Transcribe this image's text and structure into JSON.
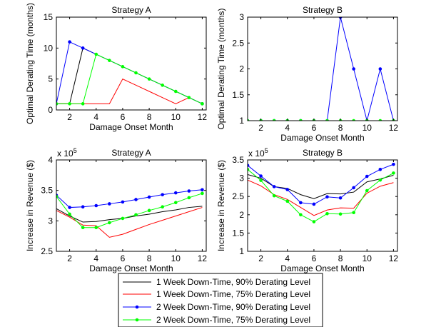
{
  "series_styles": [
    {
      "key": "w1_90",
      "color": "#000000",
      "marker": "none"
    },
    {
      "key": "w1_75",
      "color": "#ff0000",
      "marker": "none"
    },
    {
      "key": "w2_90",
      "color": "#0000ff",
      "marker": "dot"
    },
    {
      "key": "w2_75",
      "color": "#00ff00",
      "marker": "dot"
    }
  ],
  "legend": {
    "entries": [
      "1 Week Down-Time, 90% Derating Level",
      "1 Week Down-Time, 75% Derating Level",
      "2 Week Down-Time, 90% Derating Level",
      "2 Week Down-Time, 75% Derating Level"
    ]
  },
  "chart_data": [
    {
      "id": "tl",
      "type": "line",
      "title": "Strategy A",
      "xlabel": "Damage Onset Month",
      "ylabel": "Optimal Derating Time (months)",
      "exponent": "",
      "xlim": [
        1,
        12.3
      ],
      "ylim": [
        0,
        15
      ],
      "xticks": [
        2,
        4,
        6,
        8,
        10,
        12
      ],
      "yticks": [
        0,
        5,
        10,
        15
      ],
      "ytick_labels": [
        "0",
        "5",
        "10",
        "15"
      ],
      "series": [
        {
          "name": "1 Week Down-Time, 90% Derating Level",
          "x": [
            1,
            2,
            3,
            12
          ],
          "y": [
            1,
            1,
            10,
            1
          ]
        },
        {
          "name": "1 Week Down-Time, 75% Derating Level",
          "x": [
            1,
            2,
            3,
            4,
            5,
            6,
            7,
            8,
            9,
            10,
            11
          ],
          "y": [
            1,
            1,
            1,
            1,
            1,
            5,
            4,
            3,
            2,
            1,
            2
          ]
        },
        {
          "name": "2 Week Down-Time, 90% Derating Level",
          "x": [
            1,
            2,
            3,
            12
          ],
          "y": [
            1,
            11,
            10,
            1
          ]
        },
        {
          "name": "2 Week Down-Time, 75% Derating Level",
          "x": [
            1,
            2,
            3,
            4,
            5,
            6,
            7,
            8,
            9,
            10,
            11,
            12
          ],
          "y": [
            1,
            1,
            1,
            9,
            8,
            7,
            6,
            5,
            4,
            3,
            2,
            1
          ]
        }
      ]
    },
    {
      "id": "tr",
      "type": "line",
      "title": "Strategy B",
      "xlabel": "Damage Onset Month",
      "ylabel": "Optimal Derating Time (months)",
      "exponent": "",
      "xlim": [
        1,
        12.3
      ],
      "ylim": [
        1,
        3
      ],
      "xticks": [
        2,
        4,
        6,
        8,
        10,
        12
      ],
      "yticks": [
        1,
        1.5,
        2,
        2.5,
        3
      ],
      "ytick_labels": [
        "1",
        "1.5",
        "2",
        "2.5",
        "3"
      ],
      "series": [
        {
          "name": "1 Week Down-Time, 90% Derating Level",
          "x": [
            1,
            2,
            3,
            4,
            5,
            6,
            7,
            8,
            9,
            10,
            11,
            12
          ],
          "y": [
            1,
            1,
            1,
            1,
            1,
            1,
            1,
            1,
            1,
            1,
            1,
            1
          ]
        },
        {
          "name": "1 Week Down-Time, 75% Derating Level",
          "x": [
            1,
            2,
            3,
            4,
            5,
            6,
            7,
            8,
            9,
            10,
            11,
            12
          ],
          "y": [
            1,
            1,
            1,
            1,
            1,
            1,
            1,
            1,
            1,
            1,
            1,
            1
          ]
        },
        {
          "name": "2 Week Down-Time, 90% Derating Level",
          "x": [
            1,
            2,
            3,
            4,
            5,
            6,
            7,
            8,
            9,
            10,
            11,
            12
          ],
          "y": [
            1,
            1,
            1,
            1,
            1,
            1,
            1,
            3,
            2,
            1,
            2,
            1
          ]
        },
        {
          "name": "2 Week Down-Time, 75% Derating Level",
          "x": [
            1,
            2,
            3,
            4,
            5,
            6,
            7,
            8,
            9,
            10,
            11,
            12
          ],
          "y": [
            1,
            1,
            1,
            1,
            1,
            1,
            1,
            1,
            1,
            1,
            1,
            1
          ]
        }
      ]
    },
    {
      "id": "bl",
      "type": "line",
      "title": "Strategy A",
      "xlabel": "Damage Onset Month",
      "ylabel": "Increase in Revenue ($)",
      "exponent": "x 10^5",
      "xlim": [
        1,
        12.3
      ],
      "ylim": [
        2.5,
        4
      ],
      "xticks": [
        2,
        4,
        6,
        8,
        10,
        12
      ],
      "yticks": [
        2.5,
        3,
        3.5,
        4
      ],
      "ytick_labels": [
        "2.5",
        "3",
        "3.5",
        "4"
      ],
      "series": [
        {
          "name": "1 Week Down-Time, 90% Derating Level",
          "x": [
            1,
            2,
            3,
            4,
            5,
            6,
            7,
            8,
            9,
            10,
            11,
            12
          ],
          "y": [
            3.2,
            3.08,
            2.98,
            2.99,
            3.02,
            3.04,
            3.08,
            3.11,
            3.15,
            3.18,
            3.22,
            3.24
          ]
        },
        {
          "name": "1 Week Down-Time, 75% Derating Level",
          "x": [
            1,
            2,
            3,
            4,
            5,
            6,
            7,
            8,
            9,
            10,
            11,
            12
          ],
          "y": [
            3.17,
            3.06,
            2.93,
            2.92,
            2.73,
            2.78,
            2.86,
            2.94,
            3.01,
            3.08,
            3.15,
            3.22
          ]
        },
        {
          "name": "2 Week Down-Time, 90% Derating Level",
          "x": [
            1,
            2,
            3,
            4,
            5,
            6,
            7,
            8,
            9,
            10,
            11,
            12
          ],
          "y": [
            3.42,
            3.22,
            3.23,
            3.25,
            3.28,
            3.31,
            3.35,
            3.39,
            3.43,
            3.46,
            3.49,
            3.51
          ]
        },
        {
          "name": "2 Week Down-Time, 75% Derating Level",
          "x": [
            1,
            2,
            3,
            4,
            5,
            6,
            7,
            8,
            9,
            10,
            11,
            12
          ],
          "y": [
            3.4,
            3.11,
            2.89,
            2.89,
            2.97,
            3.04,
            3.1,
            3.17,
            3.23,
            3.3,
            3.38,
            3.45
          ]
        }
      ]
    },
    {
      "id": "br",
      "type": "line",
      "title": "Strategy B",
      "xlabel": "Damage Onset Month",
      "ylabel": "Increase in Revenue ($)",
      "exponent": "x 10^5",
      "xlim": [
        1,
        12.3
      ],
      "ylim": [
        1,
        3.5
      ],
      "xticks": [
        2,
        4,
        6,
        8,
        10,
        12
      ],
      "yticks": [
        1,
        1.5,
        2,
        2.5,
        3,
        3.5
      ],
      "ytick_labels": [
        "1",
        "1.5",
        "2",
        "2.5",
        "3",
        "3.5"
      ],
      "series": [
        {
          "name": "1 Week Down-Time, 90% Derating Level",
          "x": [
            1,
            2,
            3,
            4,
            5,
            6,
            7,
            8,
            9,
            10,
            11,
            12
          ],
          "y": [
            3.1,
            3.0,
            2.77,
            2.72,
            2.55,
            2.44,
            2.58,
            2.57,
            2.62,
            2.9,
            2.98,
            3.08
          ]
        },
        {
          "name": "1 Week Down-Time, 75% Derating Level",
          "x": [
            1,
            2,
            3,
            4,
            5,
            6,
            7,
            8,
            9,
            10,
            11,
            12
          ],
          "y": [
            2.95,
            2.79,
            2.55,
            2.42,
            2.2,
            1.98,
            2.13,
            2.19,
            2.18,
            2.59,
            2.78,
            2.88
          ]
        },
        {
          "name": "2 Week Down-Time, 90% Derating Level",
          "x": [
            1,
            2,
            3,
            4,
            5,
            6,
            7,
            8,
            9,
            10,
            11,
            12
          ],
          "y": [
            3.35,
            3.06,
            2.77,
            2.69,
            2.33,
            2.29,
            2.49,
            2.46,
            2.74,
            3.05,
            3.24,
            3.38
          ]
        },
        {
          "name": "2 Week Down-Time, 75% Derating Level",
          "x": [
            1,
            2,
            3,
            4,
            5,
            6,
            7,
            8,
            9,
            10,
            11,
            12
          ],
          "y": [
            3.24,
            2.94,
            2.52,
            2.37,
            2.0,
            1.81,
            2.03,
            2.02,
            2.06,
            2.66,
            2.95,
            3.14
          ]
        }
      ]
    }
  ]
}
